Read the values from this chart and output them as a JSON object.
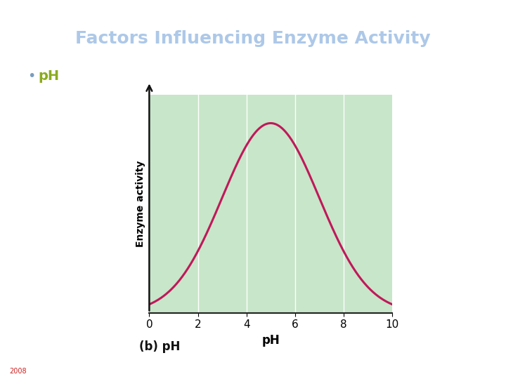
{
  "title": "Factors Influencing Enzyme Activity",
  "title_color": "#adc8e8",
  "title_bg_color": "#000000",
  "title_top_line_color": "#ffff00",
  "slide_bg_color": "#ffffff",
  "bullet_text": "pH",
  "bullet_color": "#8bab1e",
  "plot_bg_color": "#c8e6c9",
  "curve_color": "#c0185a",
  "curve_linewidth": 2.2,
  "xlabel": "pH",
  "ylabel": "Enzyme activity",
  "xticks": [
    0,
    2,
    4,
    6,
    8,
    10
  ],
  "xlim": [
    0,
    10
  ],
  "ylim": [
    0,
    1.15
  ],
  "grid_color": "#ffffff",
  "caption": "(b) pH",
  "caption_fontsize": 12,
  "year_text": "2008",
  "year_color": "#cc2222",
  "year_bg_color": "#000000",
  "peak_ph": 5.0,
  "curve_sigma": 2.0,
  "sep_color_top": "#ffff00",
  "sep_color_bot": "#888888"
}
